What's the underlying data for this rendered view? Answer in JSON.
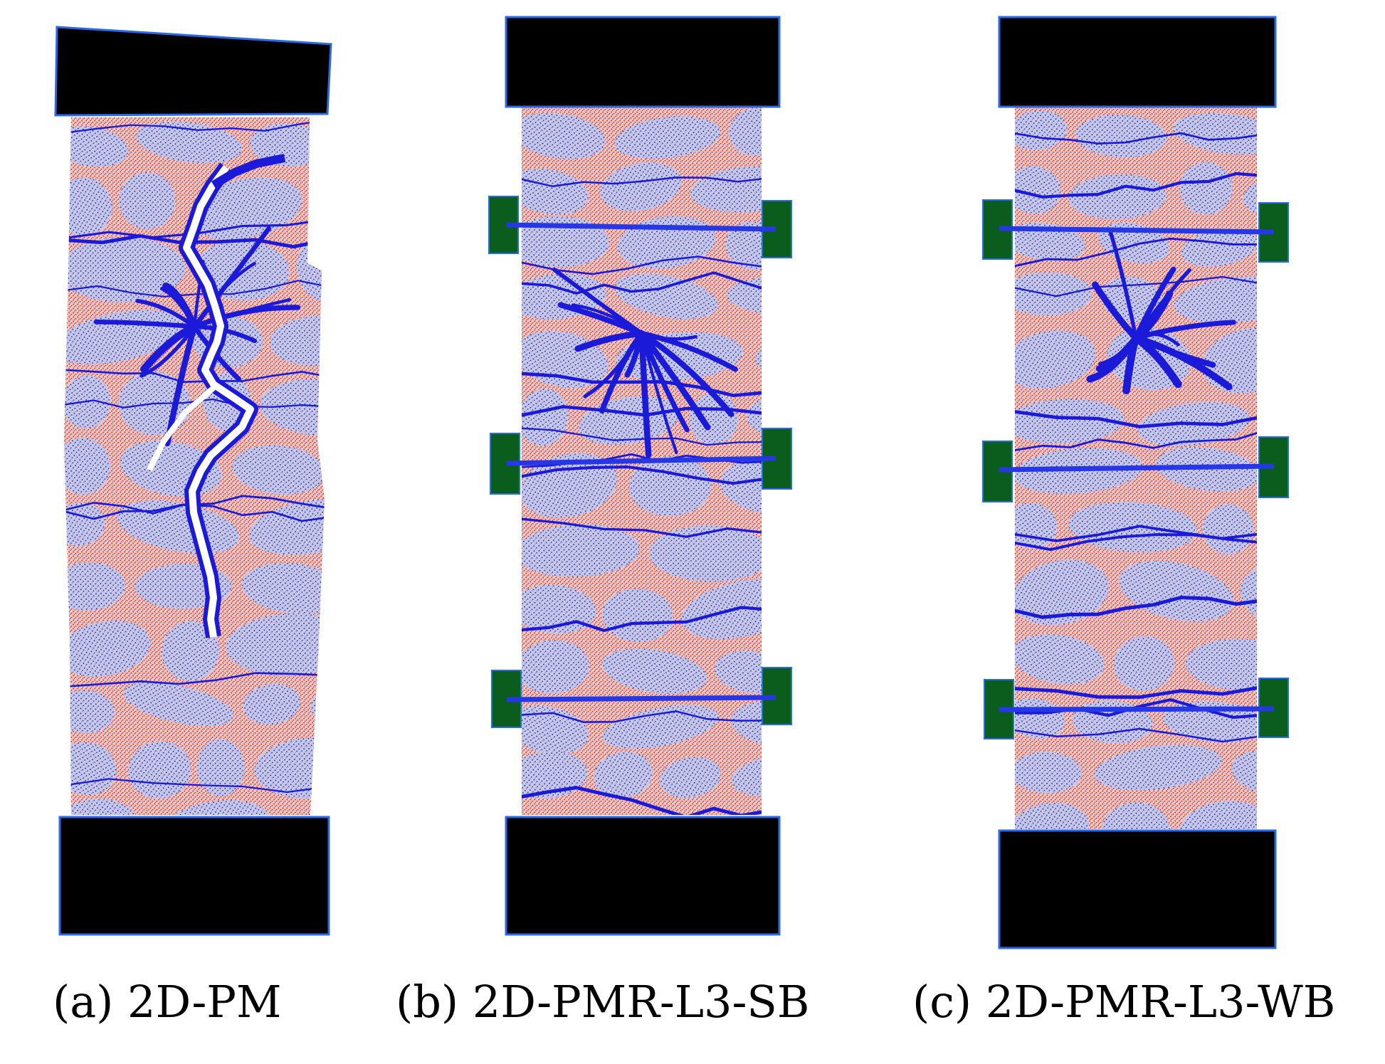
{
  "panels": [
    {
      "id": "a",
      "caption": "(a) 2D-PM",
      "reinforcement_levels": 0
    },
    {
      "id": "b",
      "caption": "(b) 2D-PMR-L3-SB",
      "reinforcement_levels": 3
    },
    {
      "id": "c",
      "caption": "(c) 2D-PMR-L3-WB",
      "reinforcement_levels": 3
    }
  ],
  "colors": {
    "loading_plate": "#000000",
    "plate_outline": "#2a6ae8",
    "aggregate_fill": "#c5c6ee",
    "aggregate_speckle": "#1a1f5e",
    "mortar_fill": "#e8b4b0",
    "mortar_speckle": "#e03020",
    "crack_band": "#1a1ad8",
    "rebar": "#2638e6",
    "anchor_block": "#0a5d1c",
    "open_crack": "#ffffff"
  }
}
